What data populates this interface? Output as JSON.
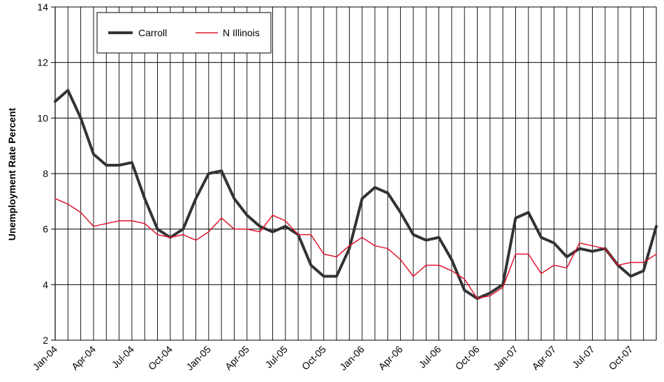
{
  "chart_data": {
    "type": "line",
    "title": "",
    "xlabel": "",
    "ylabel": "Unemployment Rate Percent",
    "ylim": [
      2,
      14
    ],
    "yticks": [
      2,
      4,
      6,
      8,
      10,
      12,
      14
    ],
    "grid": "horizontal and vertical",
    "legend_position": "top-left",
    "x": [
      "Jan-04",
      "Feb-04",
      "Mar-04",
      "Apr-04",
      "May-04",
      "Jun-04",
      "Jul-04",
      "Aug-04",
      "Sep-04",
      "Oct-04",
      "Nov-04",
      "Dec-04",
      "Jan-05",
      "Feb-05",
      "Mar-05",
      "Apr-05",
      "May-05",
      "Jun-05",
      "Jul-05",
      "Aug-05",
      "Sep-05",
      "Oct-05",
      "Nov-05",
      "Dec-05",
      "Jan-06",
      "Feb-06",
      "Mar-06",
      "Apr-06",
      "May-06",
      "Jun-06",
      "Jul-06",
      "Aug-06",
      "Sep-06",
      "Oct-06",
      "Nov-06",
      "Dec-06",
      "Jan-07",
      "Feb-07",
      "Mar-07",
      "Apr-07",
      "May-07",
      "Jun-07",
      "Jul-07",
      "Aug-07",
      "Sep-07",
      "Oct-07",
      "Nov-07",
      "Dec-07"
    ],
    "xtick_labels": [
      "Jan-04",
      "Apr-04",
      "Jul-04",
      "Oct-04",
      "Jan-05",
      "Apr-05",
      "Jul-05",
      "Oct-05",
      "Jan-06",
      "Apr-06",
      "Jul-06",
      "Oct-06",
      "Jan-07",
      "Apr-07",
      "Jul-07",
      "Oct-07"
    ],
    "series": [
      {
        "name": "Carroll",
        "color": "#333333",
        "values": [
          10.6,
          11.0,
          10.0,
          8.7,
          8.3,
          8.3,
          8.4,
          7.1,
          6.0,
          5.7,
          6.0,
          7.1,
          8.0,
          8.1,
          7.1,
          6.5,
          6.1,
          5.9,
          6.1,
          5.8,
          4.7,
          4.3,
          4.3,
          5.3,
          7.1,
          7.5,
          7.3,
          6.6,
          5.8,
          5.6,
          5.7,
          4.9,
          3.8,
          3.5,
          3.7,
          4.0,
          6.4,
          6.6,
          5.7,
          5.5,
          5.0,
          5.3,
          5.2,
          5.3,
          4.7,
          4.3,
          4.5,
          6.1
        ]
      },
      {
        "name": "N Illinois",
        "color": "#e0142d",
        "values": [
          7.1,
          6.9,
          6.6,
          6.1,
          6.2,
          6.3,
          6.3,
          6.2,
          5.8,
          5.7,
          5.8,
          5.6,
          5.9,
          6.4,
          6.0,
          6.0,
          5.9,
          6.5,
          6.3,
          5.8,
          5.8,
          5.1,
          5.0,
          5.4,
          5.7,
          5.4,
          5.3,
          4.9,
          4.3,
          4.7,
          4.7,
          4.5,
          4.2,
          3.5,
          3.6,
          3.9,
          5.1,
          5.1,
          4.4,
          4.7,
          4.6,
          5.5,
          5.4,
          5.3,
          4.7,
          4.8,
          4.8,
          5.1
        ]
      }
    ]
  }
}
